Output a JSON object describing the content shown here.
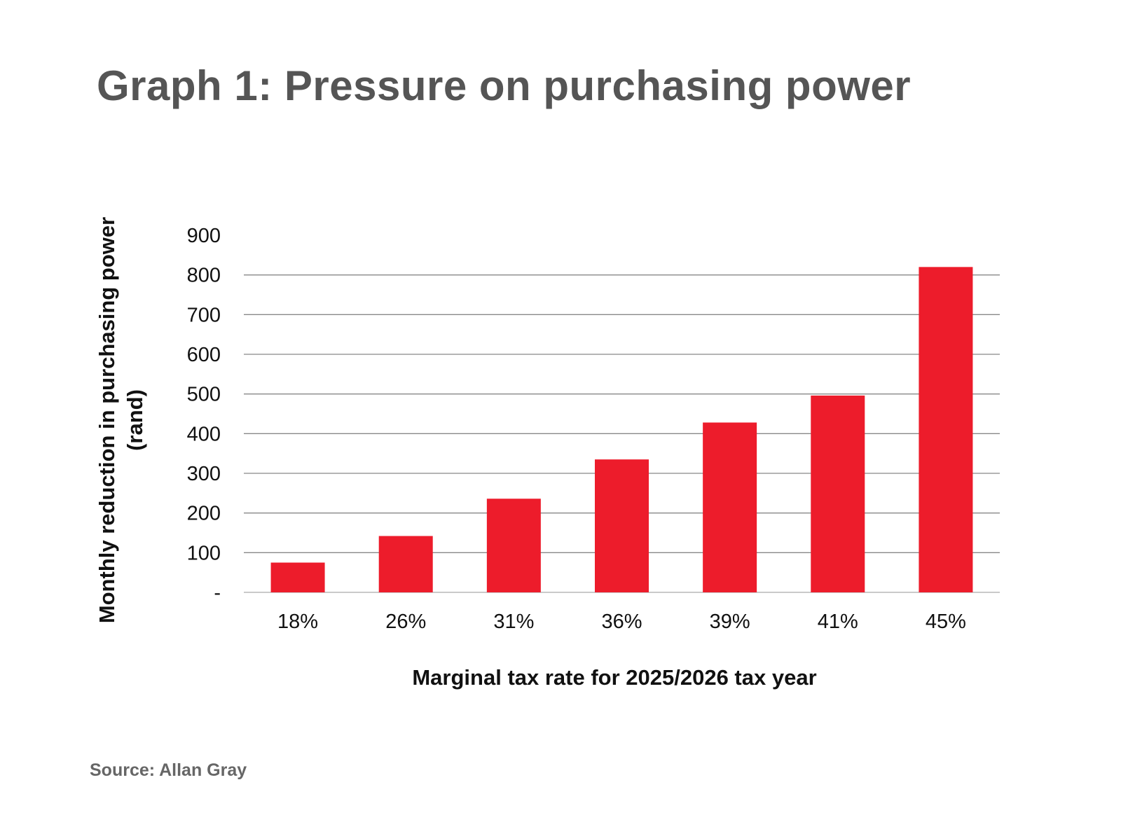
{
  "title": "Graph 1: Pressure on purchasing power",
  "source": "Source: Allan Gray",
  "chart_data": {
    "type": "bar",
    "title": "Graph 1: Pressure on purchasing power",
    "xlabel": "Marginal tax rate for 2025/2026 tax year",
    "ylabel": "Monthly reduction in purchasing power (rand)",
    "ylabel_lines": [
      "Monthly reduction in purchasing power",
      "(rand)"
    ],
    "categories": [
      "18%",
      "26%",
      "31%",
      "36%",
      "39%",
      "41%",
      "45%"
    ],
    "values": [
      75,
      142,
      236,
      335,
      428,
      496,
      820
    ],
    "ylim": [
      0,
      900
    ],
    "yticks": [
      0,
      100,
      200,
      300,
      400,
      500,
      600,
      700,
      800,
      900
    ],
    "ytick_labels": [
      "-",
      "100",
      "200",
      "300",
      "400",
      "500",
      "600",
      "700",
      "800",
      "900"
    ],
    "grid": true,
    "legend": "none",
    "bar_color": "#ED1C2B"
  }
}
